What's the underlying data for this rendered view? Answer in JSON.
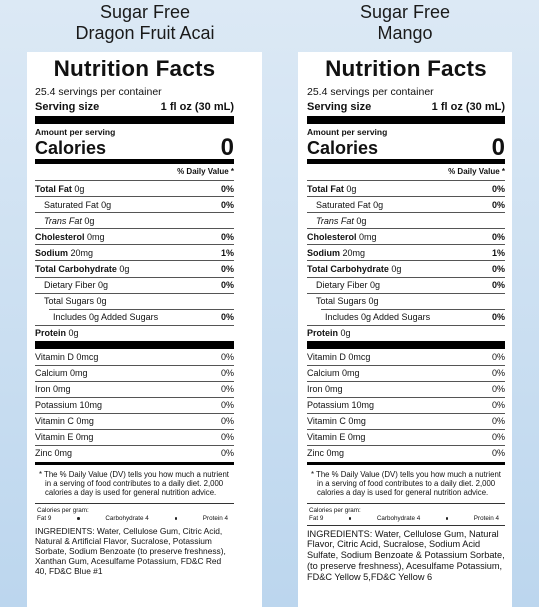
{
  "labels": [
    {
      "product": [
        "Sugar Free",
        "Dragon Fruit Acai"
      ],
      "title": "Nutrition Facts",
      "servings": "25.4 servings per container",
      "serving_size_label": "Serving size",
      "serving_size_value": "1 fl oz (30 mL)",
      "amount_per_serving": "Amount per serving",
      "calories_label": "Calories",
      "calories_value": "0",
      "dv_header": "% Daily Value *",
      "nutrients": [
        {
          "name": "Total Fat",
          "amount": "0g",
          "dv": "0%",
          "bold": true,
          "indent": 0
        },
        {
          "name": "Saturated Fat",
          "amount": "0g",
          "dv": "0%",
          "bold": false,
          "indent": 1
        },
        {
          "name": "Trans Fat",
          "amount": "0g",
          "bold": false,
          "indent": 1
        },
        {
          "name": "Cholesterol",
          "amount": "0mg",
          "dv": "0%",
          "bold": true,
          "indent": 0
        },
        {
          "name": "Sodium",
          "amount": "20mg",
          "dv": "1%",
          "bold": true,
          "indent": 0
        },
        {
          "name": "Total Carbohydrate",
          "amount": "0g",
          "dv": "0%",
          "bold": true,
          "indent": 0
        },
        {
          "name": "Dietary Fiber",
          "amount": "0g",
          "dv": "0%",
          "bold": false,
          "indent": 1
        },
        {
          "name": "Total Sugars",
          "amount": "0g",
          "bold": false,
          "indent": 1
        },
        {
          "name": "Includes 0g Added Sugars",
          "dv": "0%",
          "bold": false,
          "indent": 2
        },
        {
          "name": "Protein",
          "amount": "0g",
          "bold": true,
          "indent": 0
        }
      ],
      "vitamins": [
        {
          "name": "Vitamin D",
          "amount": "0mcg",
          "dv": "0%"
        },
        {
          "name": "Calcium",
          "amount": "0mg",
          "dv": "0%"
        },
        {
          "name": "Iron",
          "amount": "0mg",
          "dv": "0%"
        },
        {
          "name": "Potassium",
          "amount": "10mg",
          "dv": "0%"
        },
        {
          "name": "Vitamin C",
          "amount": "0mg",
          "dv": "0%"
        },
        {
          "name": "Vitamin E",
          "amount": "0mg",
          "dv": "0%"
        },
        {
          "name": "Zinc",
          "amount": "0mg",
          "dv": "0%"
        }
      ],
      "footnote": "* The % Daily Value (DV) tells you how much a nutrient in a serving of food contributes to a daily diet. 2,000 calories a day is used for general nutrition advice.",
      "calories_per_gram": "Calories per gram:",
      "calories_per_gram_items": [
        "Fat 9",
        "Carbohydrate 4",
        "Protein 4"
      ],
      "ingredients": "INGREDIENTS: Water, Cellulose Gum, Citric Acid, Natural & Artificial Flavor, Sucralose, Potassium Sorbate, Sodium Benzoate (to preserve freshness), Xanthan Gum, Acesulfame Potassium, FD&C Red 40, FD&C Blue #1"
    },
    {
      "product": [
        "Sugar Free",
        "Mango"
      ],
      "title": "Nutrition Facts",
      "servings": "25.4 servings per container",
      "serving_size_label": "Serving size",
      "serving_size_value": "1 fl oz (30 mL)",
      "amount_per_serving": "Amount per serving",
      "calories_label": "Calories",
      "calories_value": "0",
      "dv_header": "% Daily Value *",
      "nutrients": [
        {
          "name": "Total Fat",
          "amount": "0g",
          "dv": "0%",
          "bold": true,
          "indent": 0
        },
        {
          "name": "Saturated Fat",
          "amount": "0g",
          "dv": "0%",
          "bold": false,
          "indent": 1
        },
        {
          "name": "Trans Fat",
          "amount": "0g",
          "bold": false,
          "indent": 1
        },
        {
          "name": "Cholesterol",
          "amount": "0mg",
          "dv": "0%",
          "bold": true,
          "indent": 0
        },
        {
          "name": "Sodium",
          "amount": "20mg",
          "dv": "1%",
          "bold": true,
          "indent": 0
        },
        {
          "name": "Total Carbohydrate",
          "amount": "0g",
          "dv": "0%",
          "bold": true,
          "indent": 0
        },
        {
          "name": "Dietary Fiber",
          "amount": "0g",
          "dv": "0%",
          "bold": false,
          "indent": 1
        },
        {
          "name": "Total Sugars",
          "amount": "0g",
          "bold": false,
          "indent": 1
        },
        {
          "name": "Includes 0g Added Sugars",
          "dv": "0%",
          "bold": false,
          "indent": 2
        },
        {
          "name": "Protein",
          "amount": "0g",
          "bold": true,
          "indent": 0
        }
      ],
      "vitamins": [
        {
          "name": "Vitamin D",
          "amount": "0mcg",
          "dv": "0%"
        },
        {
          "name": "Calcium",
          "amount": "0mg",
          "dv": "0%"
        },
        {
          "name": "Iron",
          "amount": "0mg",
          "dv": "0%"
        },
        {
          "name": "Potassium",
          "amount": "10mg",
          "dv": "0%"
        },
        {
          "name": "Vitamin C",
          "amount": "0mg",
          "dv": "0%"
        },
        {
          "name": "Vitamin E",
          "amount": "0mg",
          "dv": "0%"
        },
        {
          "name": "Zinc",
          "amount": "0mg",
          "dv": "0%"
        }
      ],
      "footnote": "* The % Daily Value (DV) tells you how much a nutrient in a serving of food contributes to a daily diet. 2,000 calories a day is used for general nutrition advice.",
      "calories_per_gram": "Calories per gram:",
      "calories_per_gram_items": [
        "Fat 9",
        "Carbohydrate 4",
        "Protein 4"
      ],
      "ingredients": "INGREDIENTS: Water, Cellulose Gum, Natural Flavor, Citric Acid, Sucralose, Sodium Acid Sulfate, Sodium Benzoate & Potassium Sorbate, (to preserve freshness), Acesulfame Potassium, FD&C Yellow 5,FD&C Yellow 6"
    }
  ]
}
